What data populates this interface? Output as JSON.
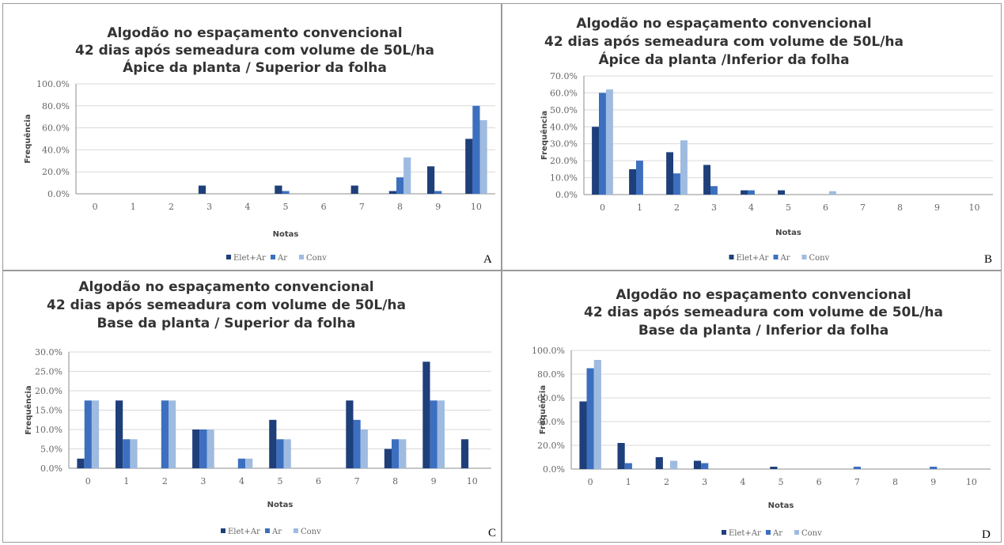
{
  "colors": {
    "elet_ar": "#1f3f7a",
    "ar": "#3c6fbf",
    "conv": "#9fbbe0",
    "grid": "#d9d9d9",
    "axis": "#8c8c8c"
  },
  "legend": [
    "Elet+Ar",
    "Ar",
    "Conv"
  ],
  "panel_letters": [
    "A",
    "B",
    "C",
    "D"
  ],
  "chart_data": [
    {
      "type": "bar",
      "title": [
        "Algodão no espaçamento convencional",
        "42 dias após semeadura com volume de 50L/ha",
        "Ápice da planta / Superior da folha"
      ],
      "xlabel": "Notas",
      "ylabel": "Frequência",
      "categories": [
        "0",
        "1",
        "2",
        "3",
        "4",
        "5",
        "6",
        "7",
        "8",
        "9",
        "10"
      ],
      "yticks": [
        "0.0%",
        "20.0%",
        "40.0%",
        "60.0%",
        "80.0%",
        "100.0%"
      ],
      "ylim": [
        0,
        100
      ],
      "grid": true,
      "legend_position": "bottom",
      "series": [
        {
          "name": "Elet+Ar",
          "values": [
            0,
            0,
            0,
            7.5,
            0,
            7.5,
            0,
            7.5,
            2.5,
            25,
            50
          ]
        },
        {
          "name": "Ar",
          "values": [
            0,
            0,
            0,
            0,
            0,
            2.5,
            0,
            0,
            15,
            2.5,
            80
          ]
        },
        {
          "name": "Conv",
          "values": [
            0,
            0,
            0,
            0,
            0,
            0,
            0,
            0,
            33,
            0,
            67
          ]
        }
      ]
    },
    {
      "type": "bar",
      "title": [
        "Algodão no espaçamento convencional",
        "42 dias após semeadura com volume de 50L/ha",
        "Ápice da planta /Inferior da folha"
      ],
      "xlabel": "Notas",
      "ylabel": "Frequência",
      "categories": [
        "0",
        "1",
        "2",
        "3",
        "4",
        "5",
        "6",
        "7",
        "8",
        "9",
        "10"
      ],
      "yticks": [
        "0.0%",
        "10.0%",
        "20.0%",
        "30.0%",
        "40.0%",
        "50.0%",
        "60.0%",
        "70.0%"
      ],
      "ylim": [
        0,
        70
      ],
      "grid": true,
      "legend_position": "bottom",
      "series": [
        {
          "name": "Elet+Ar",
          "values": [
            40,
            15,
            25,
            17.5,
            2.5,
            2.5,
            0,
            0,
            0,
            0,
            0
          ]
        },
        {
          "name": "Ar",
          "values": [
            60,
            20,
            12.5,
            5,
            2.5,
            0,
            0,
            0,
            0,
            0,
            0
          ]
        },
        {
          "name": "Conv",
          "values": [
            62,
            0,
            32,
            0,
            0,
            0,
            2,
            0,
            0,
            0,
            0
          ]
        }
      ]
    },
    {
      "type": "bar",
      "title": [
        "Algodão no espaçamento convencional",
        "42 dias após semeadura com volume de 50L/ha",
        "Base da planta / Superior da folha"
      ],
      "xlabel": "Notas",
      "ylabel": "Frequência",
      "categories": [
        "0",
        "1",
        "2",
        "3",
        "4",
        "5",
        "6",
        "7",
        "8",
        "9",
        "10"
      ],
      "yticks": [
        "0.0%",
        "5.0%",
        "10.0%",
        "15.0%",
        "20.0%",
        "25.0%",
        "30.0%"
      ],
      "ylim": [
        0,
        30
      ],
      "grid": true,
      "legend_position": "bottom",
      "series": [
        {
          "name": "Elet+Ar",
          "values": [
            2.5,
            17.5,
            0,
            10,
            0,
            12.5,
            0,
            17.5,
            5,
            27.5,
            7.5
          ]
        },
        {
          "name": "Ar",
          "values": [
            17.5,
            7.5,
            17.5,
            10,
            2.5,
            7.5,
            0,
            12.5,
            7.5,
            17.5,
            0
          ]
        },
        {
          "name": "Conv",
          "values": [
            17.5,
            7.5,
            17.5,
            10,
            2.5,
            7.5,
            0,
            10,
            7.5,
            17.5,
            0
          ]
        }
      ]
    },
    {
      "type": "bar",
      "title": [
        "Algodão no espaçamento convencional",
        "42 dias após semeadura com volume de 50L/ha",
        "Base da planta / Inferior da folha"
      ],
      "xlabel": "Notas",
      "ylabel": "Frequência",
      "categories": [
        "0",
        "1",
        "2",
        "3",
        "4",
        "5",
        "6",
        "7",
        "8",
        "9",
        "10"
      ],
      "yticks": [
        "0.0%",
        "20.0%",
        "40.0%",
        "60.0%",
        "80.0%",
        "100.0%"
      ],
      "ylim": [
        0,
        100
      ],
      "grid": true,
      "legend_position": "bottom",
      "series": [
        {
          "name": "Elet+Ar",
          "values": [
            57,
            22,
            10,
            7,
            0,
            2,
            0,
            0,
            0,
            0,
            0
          ]
        },
        {
          "name": "Ar",
          "values": [
            85,
            5,
            0,
            5,
            0,
            0,
            0,
            2,
            0,
            2,
            0
          ]
        },
        {
          "name": "Conv",
          "values": [
            92,
            0,
            7,
            0,
            0,
            0,
            0,
            0,
            0,
            0,
            0
          ]
        }
      ]
    }
  ]
}
